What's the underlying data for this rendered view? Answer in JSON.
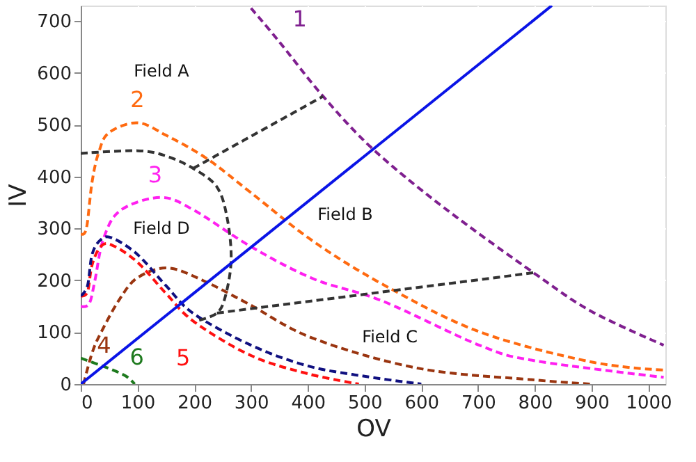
{
  "chart_data": {
    "type": "line",
    "xlabel": "OV",
    "ylabel": "IV",
    "xlim": [
      0,
      1030
    ],
    "ylim": [
      0,
      730
    ],
    "xticks": [
      0,
      100,
      200,
      300,
      400,
      500,
      600,
      700,
      800,
      900,
      1000
    ],
    "yticks": [
      0,
      100,
      200,
      300,
      400,
      500,
      600,
      700
    ],
    "grid": true,
    "marker": "none",
    "series": [
      {
        "name": "1",
        "color": "#7f1f8f",
        "line_style": "dashed",
        "x": [
          300,
          350,
          427,
          515,
          639,
          800,
          900,
          1027
        ],
        "values": [
          725,
          660,
          555,
          453,
          341,
          213,
          140,
          75
        ]
      },
      {
        "name": "2",
        "color": "#ff6a10",
        "line_style": "dashed",
        "x": [
          0,
          10,
          20,
          32,
          50,
          100,
          150,
          222,
          300,
          410,
          536,
          702,
          898,
          1027
        ],
        "values": [
          290,
          300,
          390,
          448,
          485,
          504,
          480,
          435,
          369,
          275,
          190,
          101,
          43,
          27
        ]
      },
      {
        "name": "3",
        "color": "#ff20f0",
        "line_style": "dashed",
        "x": [
          0,
          15,
          25,
          40,
          70,
          141,
          200,
          300,
          410,
          532,
          702,
          800,
          1027
        ],
        "values": [
          150,
          155,
          200,
          280,
          335,
          360,
          335,
          265,
          203,
          160,
          75,
          45,
          13
        ]
      },
      {
        "name": "4",
        "color": "#9a3510",
        "line_style": "dashed",
        "x": [
          5,
          20,
          36,
          68,
          100,
          153,
          215,
          295,
          410,
          597,
          800,
          898
        ],
        "values": [
          0,
          60,
          100,
          163,
          205,
          224,
          200,
          155,
          88,
          30,
          8,
          0
        ]
      },
      {
        "name": "5",
        "color": "#ff1010",
        "line_style": "dashed",
        "x": [
          0,
          12,
          20,
          35,
          55,
          100,
          150,
          200,
          300,
          400,
          490
        ],
        "values": [
          170,
          178,
          230,
          265,
          268,
          235,
          175,
          120,
          55,
          20,
          0
        ]
      },
      {
        "color": "#101080",
        "line_style": "dashed",
        "x": [
          0,
          12,
          20,
          35,
          55,
          100,
          150,
          200,
          300,
          400,
          500,
          600
        ],
        "values": [
          170,
          190,
          250,
          278,
          282,
          250,
          190,
          135,
          75,
          35,
          15,
          0
        ]
      },
      {
        "name": "6",
        "color": "#1e7a1e",
        "line_style": "dashed",
        "x": [
          0,
          50,
          80,
          95
        ],
        "values": [
          50,
          30,
          15,
          0
        ]
      },
      {
        "color": "#333333",
        "line_style": "dashed",
        "x": [
          0,
          100,
          150,
          198,
          240,
          258,
          265,
          255,
          240,
          205
        ],
        "values": [
          445,
          450,
          440,
          416,
          380,
          320,
          240,
          170,
          137,
          122
        ]
      },
      {
        "color": "#333333",
        "line_style": "dashed",
        "x": [
          198,
          427
        ],
        "values": [
          416,
          555
        ]
      },
      {
        "color": "#333333",
        "line_style": "dashed",
        "x": [
          240,
          800
        ],
        "values": [
          137,
          215
        ]
      },
      {
        "color": "#0a14e6",
        "line_style": "solid",
        "x": [
          0,
          830
        ],
        "values": [
          0,
          730
        ]
      }
    ],
    "annotations": [
      "Field A",
      "Field B",
      "Field C",
      "Field D"
    ]
  }
}
